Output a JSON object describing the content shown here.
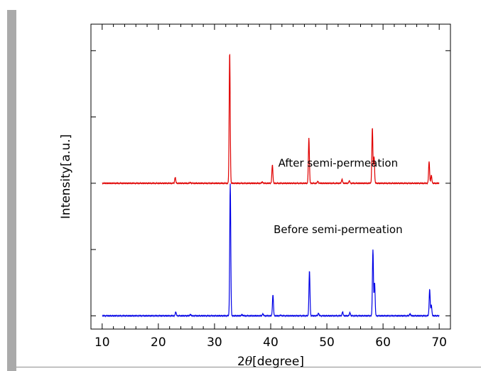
{
  "chart_data": {
    "type": "line",
    "xlabel_prefix": "2",
    "xlabel_symbol": "θ",
    "xlabel_suffix": "[degree]",
    "ylabel": "Intensity[a.u.]",
    "xlim": [
      8,
      72
    ],
    "ylim": [
      -0.2,
      4.4
    ],
    "xticks": [
      10,
      20,
      30,
      40,
      50,
      60,
      70
    ],
    "yticks_left": [
      0,
      1,
      2,
      3,
      4
    ],
    "yticks_right": [
      0,
      2,
      4
    ],
    "grid": false,
    "annotations": [
      {
        "text": "After semi-permeation",
        "x": 52.0,
        "y": 2.25
      },
      {
        "text": "Before semi-permeation",
        "x": 52.0,
        "y": 1.25
      }
    ],
    "series": [
      {
        "color": "#e00000",
        "baseline": 2.0,
        "x_range": [
          10,
          70
        ],
        "peaks": [
          {
            "x": 23.0,
            "height": 0.09
          },
          {
            "x": 25.7,
            "height": 0.01
          },
          {
            "x": 32.7,
            "height": 1.98
          },
          {
            "x": 38.5,
            "height": 0.02
          },
          {
            "x": 40.3,
            "height": 0.28
          },
          {
            "x": 46.8,
            "height": 0.68
          },
          {
            "x": 48.4,
            "height": 0.03
          },
          {
            "x": 52.7,
            "height": 0.06
          },
          {
            "x": 54.0,
            "height": 0.04
          },
          {
            "x": 58.1,
            "height": 0.84
          },
          {
            "x": 58.4,
            "height": 0.4
          },
          {
            "x": 68.2,
            "height": 0.33
          },
          {
            "x": 68.6,
            "height": 0.12
          }
        ]
      },
      {
        "color": "#0000e6",
        "baseline": 0.0,
        "x_range": [
          10,
          70
        ],
        "peaks": [
          {
            "x": 23.1,
            "height": 0.06
          },
          {
            "x": 25.7,
            "height": 0.02
          },
          {
            "x": 32.8,
            "height": 2.0
          },
          {
            "x": 34.9,
            "height": 0.02
          },
          {
            "x": 38.6,
            "height": 0.03
          },
          {
            "x": 40.4,
            "height": 0.32
          },
          {
            "x": 41.8,
            "height": 0.01
          },
          {
            "x": 46.9,
            "height": 0.68
          },
          {
            "x": 48.5,
            "height": 0.04
          },
          {
            "x": 52.8,
            "height": 0.06
          },
          {
            "x": 54.1,
            "height": 0.05
          },
          {
            "x": 58.2,
            "height": 1.0
          },
          {
            "x": 58.5,
            "height": 0.5
          },
          {
            "x": 64.8,
            "height": 0.03
          },
          {
            "x": 68.3,
            "height": 0.4
          },
          {
            "x": 68.6,
            "height": 0.16
          }
        ]
      }
    ]
  }
}
